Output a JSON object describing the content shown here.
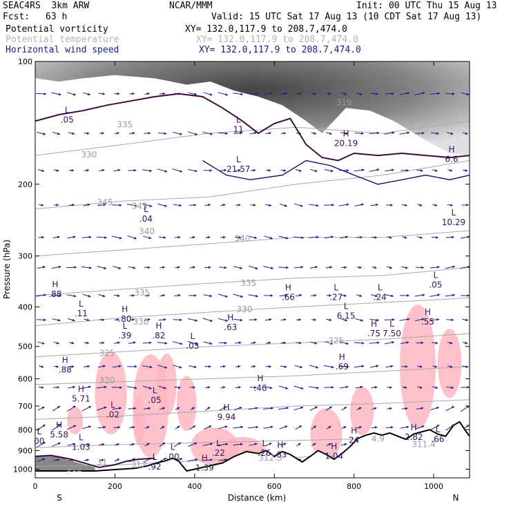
{
  "header": {
    "model": "SEAC4RS  3km ARW",
    "org": "NCAR/MMM",
    "init": "Init: 00 UTC Thu 15 Aug 13",
    "fcst_label": "Fcst:",
    "fcst_value": "63 h",
    "valid": "Valid: 15 UTC Sat 17 Aug 13 (10 CDT Sat 17 Aug 13)"
  },
  "fields": [
    {
      "name": "Potential vorticity",
      "xy": "XY= 132.0,117.9 to 208.7,474.0",
      "color": "#000000"
    },
    {
      "name": "Potential temperature",
      "xy": "XY= 132.0,117.9 to 208.7,474.0",
      "color": "#b3b3b3"
    },
    {
      "name": "Horizontal wind speed",
      "xy": "XY= 132.0,117.9 to 208.7,474.0",
      "color": "#1a1a8c"
    }
  ],
  "chart_data": {
    "type": "cross-section",
    "xlabel": "Distance (km)",
    "ylabel": "Pressure (hPa)",
    "xlim": [
      0,
      1090
    ],
    "ylim": [
      1050,
      100
    ],
    "y_scale": "log",
    "x_ticks": [
      0,
      200,
      400,
      600,
      800,
      1000
    ],
    "y_ticks": [
      100,
      200,
      300,
      400,
      500,
      600,
      700,
      800,
      900,
      1000
    ],
    "endpoints": {
      "left": "S",
      "right": "N"
    },
    "theta_contours": [
      {
        "label": "330",
        "x": 135,
        "p": 172
      },
      {
        "label": "335",
        "x": 225,
        "p": 145
      },
      {
        "label": "345",
        "x": 175,
        "p": 225
      },
      {
        "label": "345",
        "x": 262,
        "p": 230
      },
      {
        "label": "340",
        "x": 280,
        "p": 265
      },
      {
        "label": "340",
        "x": 520,
        "p": 276
      },
      {
        "label": "335",
        "x": 535,
        "p": 355
      },
      {
        "label": "335",
        "x": 268,
        "p": 375
      },
      {
        "label": "330",
        "x": 265,
        "p": 442
      },
      {
        "label": "330",
        "x": 525,
        "p": 412
      },
      {
        "label": "325",
        "x": 180,
        "p": 528
      },
      {
        "label": "325",
        "x": 755,
        "p": 492
      },
      {
        "label": "320",
        "x": 180,
        "p": 615
      },
      {
        "label": "319",
        "x": 775,
        "p": 128
      },
      {
        "label": "311.4",
        "x": 975,
        "p": 883
      },
      {
        "label": "4.9",
        "x": 860,
        "p": 856
      },
      {
        "label": "312.3",
        "x": 590,
        "p": 952
      },
      {
        "label": "312",
        "x": 98,
        "p": 1013
      },
      {
        "label": "31",
        "x": 168,
        "p": 977
      },
      {
        "label": "312",
        "x": 260,
        "p": 991
      }
    ],
    "pv_extrema": [
      {
        "type": "L",
        "value": ".05",
        "x": 80,
        "p": 140
      },
      {
        "type": "L",
        "value": "11",
        "x": 510,
        "p": 148
      },
      {
        "type": "L",
        "value": "21.57",
        "x": 510,
        "p": 185
      },
      {
        "type": "H",
        "value": "20.19",
        "x": 780,
        "p": 160
      },
      {
        "type": "H",
        "value": "6.6",
        "x": 1045,
        "p": 175
      },
      {
        "type": "L",
        "value": ".04",
        "x": 278,
        "p": 245
      },
      {
        "type": "L",
        "value": "10.29",
        "x": 1050,
        "p": 250
      },
      {
        "type": "H",
        "value": ".88",
        "x": 50,
        "p": 375
      },
      {
        "type": "L",
        "value": ".11",
        "x": 115,
        "p": 418
      },
      {
        "type": "H",
        "value": ".80",
        "x": 225,
        "p": 432
      },
      {
        "type": "L",
        "value": ".39",
        "x": 225,
        "p": 474
      },
      {
        "type": "H",
        "value": ".82",
        "x": 310,
        "p": 474
      },
      {
        "type": "L",
        "value": ".03",
        "x": 395,
        "p": 502
      },
      {
        "type": "H",
        "value": ".63",
        "x": 490,
        "p": 452
      },
      {
        "type": "H",
        "value": ".66",
        "x": 635,
        "p": 382
      },
      {
        "type": "L",
        "value": ".27",
        "x": 755,
        "p": 382
      },
      {
        "type": "L",
        "value": ".24",
        "x": 865,
        "p": 382
      },
      {
        "type": "L",
        "value": ".05",
        "x": 1005,
        "p": 356
      },
      {
        "type": "L",
        "value": "6.15",
        "x": 780,
        "p": 424
      },
      {
        "type": "H",
        "value": ".75",
        "x": 850,
        "p": 468
      },
      {
        "type": "L",
        "value": "7.50",
        "x": 895,
        "p": 468
      },
      {
        "type": "H",
        "value": ".55",
        "x": 985,
        "p": 438
      },
      {
        "type": "H",
        "value": ".69",
        "x": 770,
        "p": 565
      },
      {
        "type": "H",
        "value": ".88",
        "x": 75,
        "p": 575
      },
      {
        "type": "H",
        "value": ".46",
        "x": 565,
        "p": 638
      },
      {
        "type": "H",
        "value": "5.71",
        "x": 115,
        "p": 677
      },
      {
        "type": "L",
        "value": ".05",
        "x": 300,
        "p": 682
      },
      {
        "type": "L",
        "value": ".02",
        "x": 195,
        "p": 741
      },
      {
        "type": "H",
        "value": "9.94",
        "x": 480,
        "p": 751
      },
      {
        "type": "H",
        "value": "5.58",
        "x": 60,
        "p": 830
      },
      {
        "type": "L",
        "value": "00",
        "x": 10,
        "p": 860
      },
      {
        "type": "L",
        "value": "1.03",
        "x": 115,
        "p": 890
      },
      {
        "type": "H",
        "value": "2.82",
        "x": 950,
        "p": 840
      },
      {
        "type": "L",
        "value": ".66",
        "x": 1010,
        "p": 850
      },
      {
        "type": "H",
        "value": "24",
        "x": 800,
        "p": 855
      },
      {
        "type": "L",
        "value": ".26",
        "x": 575,
        "p": 919
      },
      {
        "type": "H",
        "value": ".63",
        "x": 615,
        "p": 928
      },
      {
        "type": "H",
        "value": "1.04",
        "x": 750,
        "p": 935
      },
      {
        "type": "L",
        "value": ".22",
        "x": 460,
        "p": 919
      },
      {
        "type": "L",
        "value": ".00",
        "x": 345,
        "p": 940
      },
      {
        "type": "L",
        "value": ".92",
        "x": 300,
        "p": 995
      },
      {
        "type": "H",
        "value": "1.39",
        "x": 425,
        "p": 1000
      }
    ],
    "terrain_p": [
      [
        0,
        1010
      ],
      [
        150,
        1010
      ],
      [
        200,
        1002
      ],
      [
        250,
        995
      ],
      [
        280,
        982
      ],
      [
        305,
        965
      ],
      [
        325,
        955
      ],
      [
        345,
        940
      ],
      [
        360,
        955
      ],
      [
        380,
        1010
      ],
      [
        400,
        1000
      ],
      [
        430,
        985
      ],
      [
        470,
        965
      ],
      [
        500,
        930
      ],
      [
        530,
        905
      ],
      [
        560,
        915
      ],
      [
        580,
        900
      ],
      [
        600,
        930
      ],
      [
        620,
        905
      ],
      [
        640,
        920
      ],
      [
        655,
        940
      ],
      [
        670,
        960
      ],
      [
        690,
        930
      ],
      [
        710,
        900
      ],
      [
        730,
        920
      ],
      [
        750,
        945
      ],
      [
        770,
        915
      ],
      [
        790,
        880
      ],
      [
        810,
        840
      ],
      [
        830,
        825
      ],
      [
        850,
        815
      ],
      [
        870,
        825
      ],
      [
        890,
        815
      ],
      [
        910,
        830
      ],
      [
        930,
        845
      ],
      [
        950,
        820
      ],
      [
        970,
        810
      ],
      [
        990,
        800
      ],
      [
        1010,
        820
      ],
      [
        1030,
        830
      ],
      [
        1050,
        780
      ],
      [
        1065,
        765
      ],
      [
        1080,
        805
      ],
      [
        1090,
        830
      ]
    ]
  }
}
